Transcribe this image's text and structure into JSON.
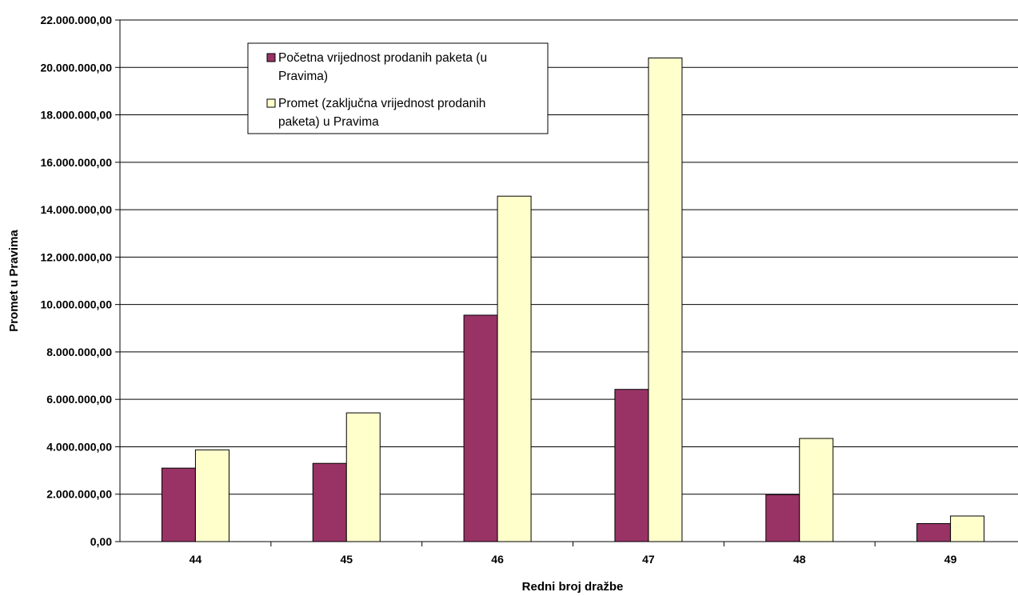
{
  "chart_data": {
    "type": "bar",
    "categories": [
      "44",
      "45",
      "46",
      "47",
      "48",
      "49"
    ],
    "series": [
      {
        "name": "Početna vrijednost prodanih paketa (u Pravima)",
        "legend_lines": [
          "Početna vrijednost prodanih paketa (u",
          "Pravima)"
        ],
        "color": "#993366",
        "values": [
          3100000,
          3300000,
          9550000,
          6420000,
          1980000,
          760000
        ]
      },
      {
        "name": "Promet (zaključna vrijednost prodanih paketa) u Pravima",
        "legend_lines": [
          "Promet (zaključna vrijednost prodanih",
          "paketa) u Pravima"
        ],
        "color": "#FFFFCC",
        "values": [
          3870000,
          5430000,
          14570000,
          20400000,
          4350000,
          1080000
        ]
      }
    ],
    "xlabel": "Redni broj dražbe",
    "ylabel": "Promet u Pravima",
    "ylim": [
      0,
      22000000
    ],
    "y_ticks": [
      {
        "value": 0,
        "label": "0,00"
      },
      {
        "value": 2000000,
        "label": "2.000.000,00"
      },
      {
        "value": 4000000,
        "label": "4.000.000,00"
      },
      {
        "value": 6000000,
        "label": "6.000.000,00"
      },
      {
        "value": 8000000,
        "label": "8.000.000,00"
      },
      {
        "value": 10000000,
        "label": "10.000.000,00"
      },
      {
        "value": 12000000,
        "label": "12.000.000,00"
      },
      {
        "value": 14000000,
        "label": "14.000.000,00"
      },
      {
        "value": 16000000,
        "label": "16.000.000,00"
      },
      {
        "value": 18000000,
        "label": "18.000.000,00"
      },
      {
        "value": 20000000,
        "label": "20.000.000,00"
      },
      {
        "value": 22000000,
        "label": "22.000.000,00"
      }
    ],
    "grid": true,
    "legend_position": "top-left"
  }
}
